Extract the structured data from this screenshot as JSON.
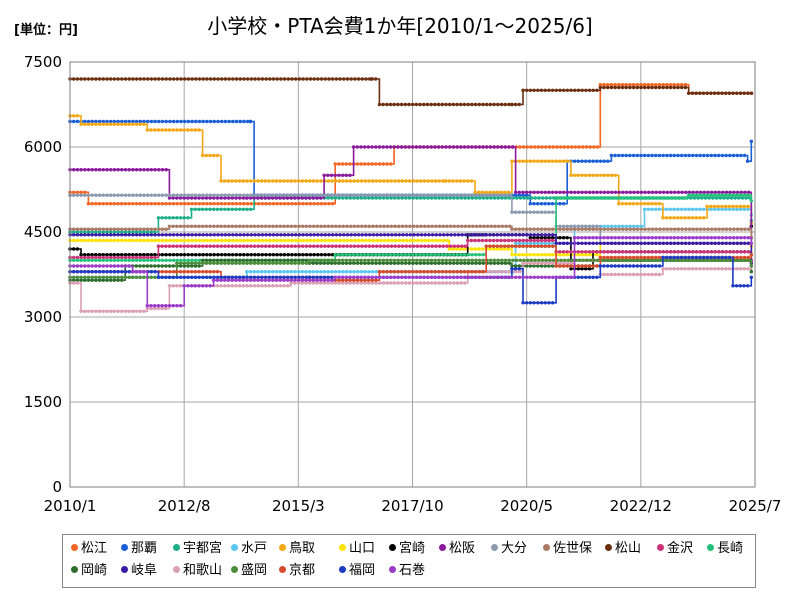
{
  "chart_data": {
    "type": "line",
    "title": "小学校・PTA会費1か年[2010/1～2025/6]",
    "unit_label": "[単位：円]",
    "xlabel": "",
    "ylabel": "",
    "ylim": [
      0,
      7500
    ],
    "xlim": [
      "2010/1",
      "2025/7"
    ],
    "y_ticks": [
      "0",
      "1500",
      "3000",
      "4500",
      "6000",
      "7500"
    ],
    "x_ticks": [
      "2010/1",
      "2012/8",
      "2015/3",
      "2017/10",
      "2020/5",
      "2022/12",
      "2025/7"
    ],
    "grid": true,
    "legend_position": "bottom",
    "series": [
      {
        "name": "松江",
        "color": "#f26522",
        "points": [
          [
            "2010/1",
            5200
          ],
          [
            "2010/6",
            5000
          ],
          [
            "2016/1",
            5700
          ],
          [
            "2017/5",
            6000
          ],
          [
            "2022/1",
            7100
          ],
          [
            "2024/1",
            6950
          ],
          [
            "2025/6",
            6950
          ]
        ]
      },
      {
        "name": "那覇",
        "color": "#1a5fd6",
        "points": [
          [
            "2010/1",
            6450
          ],
          [
            "2014/2",
            6450
          ],
          [
            "2014/3",
            5150
          ],
          [
            "2020/1",
            5150
          ],
          [
            "2020/6",
            5000
          ],
          [
            "2021/4",
            5750
          ],
          [
            "2022/4",
            5850
          ],
          [
            "2025/5",
            5750
          ],
          [
            "2025/6",
            6100
          ]
        ]
      },
      {
        "name": "宇都宮",
        "color": "#1daf87",
        "points": [
          [
            "2010/1",
            4500
          ],
          [
            "2011/8",
            4500
          ],
          [
            "2012/1",
            4750
          ],
          [
            "2012/10",
            4900
          ],
          [
            "2014/3",
            5100
          ],
          [
            "2025/6",
            4700
          ]
        ]
      },
      {
        "name": "水戸",
        "color": "#5bc6f0",
        "points": [
          [
            "2010/1",
            3700
          ],
          [
            "2014/1",
            3800
          ],
          [
            "2020/2",
            4300
          ],
          [
            "2021/6",
            4600
          ],
          [
            "2023/1",
            4900
          ],
          [
            "2025/6",
            4800
          ]
        ]
      },
      {
        "name": "鳥取",
        "color": "#f4a715",
        "points": [
          [
            "2010/1",
            6550
          ],
          [
            "2010/4",
            6400
          ],
          [
            "2011/10",
            6300
          ],
          [
            "2013/1",
            5850
          ],
          [
            "2013/6",
            5400
          ],
          [
            "2018/7",
            5400
          ],
          [
            "2019/3",
            5200
          ],
          [
            "2020/1",
            5750
          ],
          [
            "2021/5",
            5500
          ],
          [
            "2022/6",
            5000
          ],
          [
            "2023/6",
            4750
          ],
          [
            "2024/6",
            4950
          ],
          [
            "2025/6",
            4650
          ]
        ]
      },
      {
        "name": "山口",
        "color": "#ffe400",
        "points": [
          [
            "2010/1",
            4350
          ],
          [
            "2018/8",
            4200
          ],
          [
            "2020/1",
            4100
          ],
          [
            "2022/1",
            4300
          ],
          [
            "2025/6",
            4250
          ]
        ]
      },
      {
        "name": "宮崎",
        "color": "#000000",
        "points": [
          [
            "2010/1",
            4200
          ],
          [
            "2010/4",
            4100
          ],
          [
            "2019/1",
            4450
          ],
          [
            "2020/6",
            4400
          ],
          [
            "2021/5",
            3850
          ],
          [
            "2021/11",
            4150
          ],
          [
            "2025/6",
            4600
          ]
        ]
      },
      {
        "name": "松阪",
        "color": "#8a1b9c",
        "points": [
          [
            "2010/1",
            5600
          ],
          [
            "2012/4",
            5100
          ],
          [
            "2014/1",
            5100
          ],
          [
            "2015/10",
            5500
          ],
          [
            "2016/6",
            6000
          ],
          [
            "2020/2",
            5200
          ],
          [
            "2025/6",
            4400
          ]
        ]
      },
      {
        "name": "大分",
        "color": "#8c9ab0",
        "points": [
          [
            "2010/1",
            5150
          ],
          [
            "2020/1",
            4850
          ],
          [
            "2021/1",
            4600
          ],
          [
            "2022/1",
            4300
          ],
          [
            "2025/6",
            4100
          ]
        ]
      },
      {
        "name": "佐世保",
        "color": "#a87a66",
        "points": [
          [
            "2010/1",
            4550
          ],
          [
            "2012/4",
            4600
          ],
          [
            "2020/1",
            4550
          ],
          [
            "2025/6",
            4400
          ]
        ]
      },
      {
        "name": "松山",
        "color": "#6b2e10",
        "points": [
          [
            "2010/1",
            7200
          ],
          [
            "2016/11",
            7200
          ],
          [
            "2017/1",
            6750
          ],
          [
            "2020/1",
            6750
          ],
          [
            "2020/4",
            7000
          ],
          [
            "2022/1",
            7050
          ],
          [
            "2024/1",
            6950
          ]
        ]
      },
      {
        "name": "金沢",
        "color": "#cc3377",
        "points": [
          [
            "2010/1",
            4050
          ],
          [
            "2012/1",
            4250
          ],
          [
            "2019/1",
            4350
          ],
          [
            "2021/1",
            4150
          ],
          [
            "2025/6",
            4000
          ]
        ]
      },
      {
        "name": "長崎",
        "color": "#25c17a",
        "points": [
          [
            "2010/1",
            4000
          ],
          [
            "2016/1",
            4100
          ],
          [
            "2019/6",
            4250
          ],
          [
            "2021/1",
            5100
          ],
          [
            "2024/1",
            5150
          ],
          [
            "2025/6",
            5050
          ]
        ]
      },
      {
        "name": "岡崎",
        "color": "#2e6e2e",
        "points": [
          [
            "2010/1",
            3650
          ],
          [
            "2011/4",
            3900
          ],
          [
            "2013/1",
            4000
          ],
          [
            "2015/6",
            3950
          ],
          [
            "2020/1",
            3900
          ],
          [
            "2022/1",
            4000
          ],
          [
            "2025/6",
            3800
          ]
        ]
      },
      {
        "name": "岐阜",
        "color": "#3b1aa6",
        "points": [
          [
            "2010/1",
            4450
          ],
          [
            "2019/6",
            4450
          ],
          [
            "2021/1",
            4300
          ],
          [
            "2025/6",
            3950
          ]
        ]
      },
      {
        "name": "和歌山",
        "color": "#dba0b4",
        "points": [
          [
            "2010/1",
            3600
          ],
          [
            "2010/4",
            3100
          ],
          [
            "2011/10",
            3150
          ],
          [
            "2012/4",
            3550
          ],
          [
            "2015/1",
            3600
          ],
          [
            "2019/1",
            3800
          ],
          [
            "2020/4",
            3950
          ],
          [
            "2021/6",
            4000
          ],
          [
            "2022/1",
            3750
          ],
          [
            "2023/6",
            3850
          ],
          [
            "2025/6",
            3900
          ]
        ]
      },
      {
        "name": "盛岡",
        "color": "#4c8c3a",
        "points": [
          [
            "2010/1",
            3700
          ],
          [
            "2011/6",
            3700
          ],
          [
            "2012/6",
            3950
          ],
          [
            "2015/6",
            4000
          ],
          [
            "2025/6",
            3900
          ]
        ]
      },
      {
        "name": "京都",
        "color": "#d64b2b",
        "points": [
          [
            "2010/1",
            3800
          ],
          [
            "2012/6",
            3800
          ],
          [
            "2013/6",
            3700
          ],
          [
            "2016/1",
            3650
          ],
          [
            "2017/1",
            3800
          ],
          [
            "2019/6",
            4250
          ],
          [
            "2021/1",
            3900
          ],
          [
            "2022/1",
            4050
          ],
          [
            "2025/6",
            4100
          ]
        ]
      },
      {
        "name": "福岡",
        "color": "#1c3ac4",
        "points": [
          [
            "2010/1",
            3800
          ],
          [
            "2012/1",
            3700
          ],
          [
            "2015/6",
            3700
          ],
          [
            "2020/1",
            3850
          ],
          [
            "2020/4",
            3250
          ],
          [
            "2021/1",
            3700
          ],
          [
            "2022/1",
            3900
          ],
          [
            "2023/6",
            4050
          ],
          [
            "2025/1",
            3550
          ],
          [
            "2025/6",
            3700
          ]
        ]
      },
      {
        "name": "石巻",
        "color": "#9b3cc8",
        "points": [
          [
            "2010/1",
            3900
          ],
          [
            "2011/6",
            3800
          ],
          [
            "2011/10",
            3200
          ],
          [
            "2012/8",
            3550
          ],
          [
            "2013/4",
            3650
          ],
          [
            "2016/1",
            3700
          ],
          [
            "2019/1",
            3700
          ],
          [
            "2021/6",
            4400
          ],
          [
            "2025/6",
            4300
          ]
        ]
      }
    ]
  }
}
